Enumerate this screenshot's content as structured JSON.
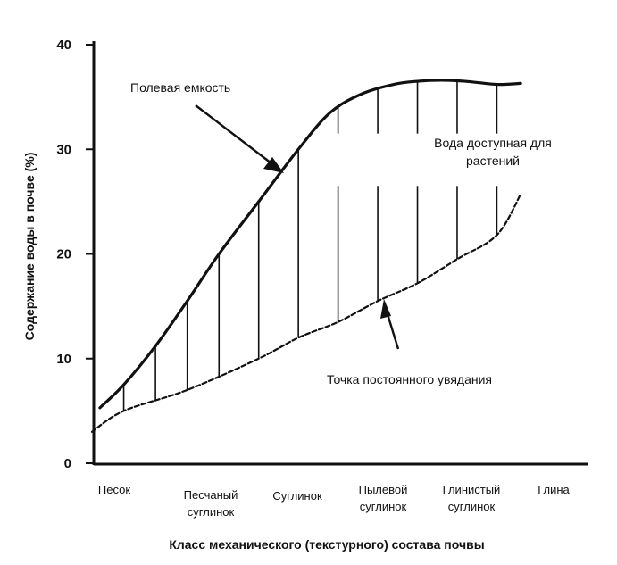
{
  "chart_data": {
    "type": "line",
    "title": "",
    "ylabel": "Содержание воды в почве (%)",
    "xlabel": "Класс механического (текстурного) состава почвы",
    "ylim": [
      0,
      40
    ],
    "yticks": [
      0,
      10,
      20,
      30,
      40
    ],
    "categories": [
      [
        "Песок"
      ],
      [
        "Песчаный",
        "суглинок"
      ],
      [
        "Суглинок"
      ],
      [
        "Пылевой",
        "суглинок"
      ],
      [
        "Глинистый",
        "суглинок"
      ],
      [
        "Глина"
      ]
    ],
    "x_domain": [
      -0.1,
      5.85
    ],
    "series": [
      {
        "name": "Полевая емкость",
        "style": "solid",
        "x": [
          0.0,
          0.3,
          0.7,
          1.1,
          1.5,
          2.0,
          2.5,
          2.9,
          3.3,
          3.7,
          4.0,
          4.3,
          4.6,
          5.0,
          5.3
        ],
        "y": [
          5.3,
          7.5,
          11.2,
          15.5,
          20.0,
          25.0,
          30.0,
          33.5,
          35.3,
          36.2,
          36.5,
          36.6,
          36.5,
          36.2,
          36.3
        ]
      },
      {
        "name": "Точка постоянного увядания",
        "style": "dashed",
        "x": [
          -0.1,
          0.3,
          1.1,
          2.0,
          2.5,
          3.0,
          3.5,
          4.0,
          4.5,
          5.0,
          5.3
        ],
        "y": [
          3.0,
          5.0,
          7.0,
          10.0,
          12.0,
          13.5,
          15.5,
          17.2,
          19.5,
          21.8,
          25.7
        ]
      }
    ],
    "hatch_x": [
      0.3,
      0.7,
      1.1,
      1.5,
      2.0,
      2.5,
      3.0,
      3.5,
      4.0,
      4.5,
      5.0
    ],
    "annotations": [
      {
        "text": [
          "Полевая емкость"
        ]
      },
      {
        "text": [
          "Вода доступная для",
          "растений"
        ]
      },
      {
        "text": [
          "Точка постоянного увядания"
        ]
      }
    ]
  }
}
